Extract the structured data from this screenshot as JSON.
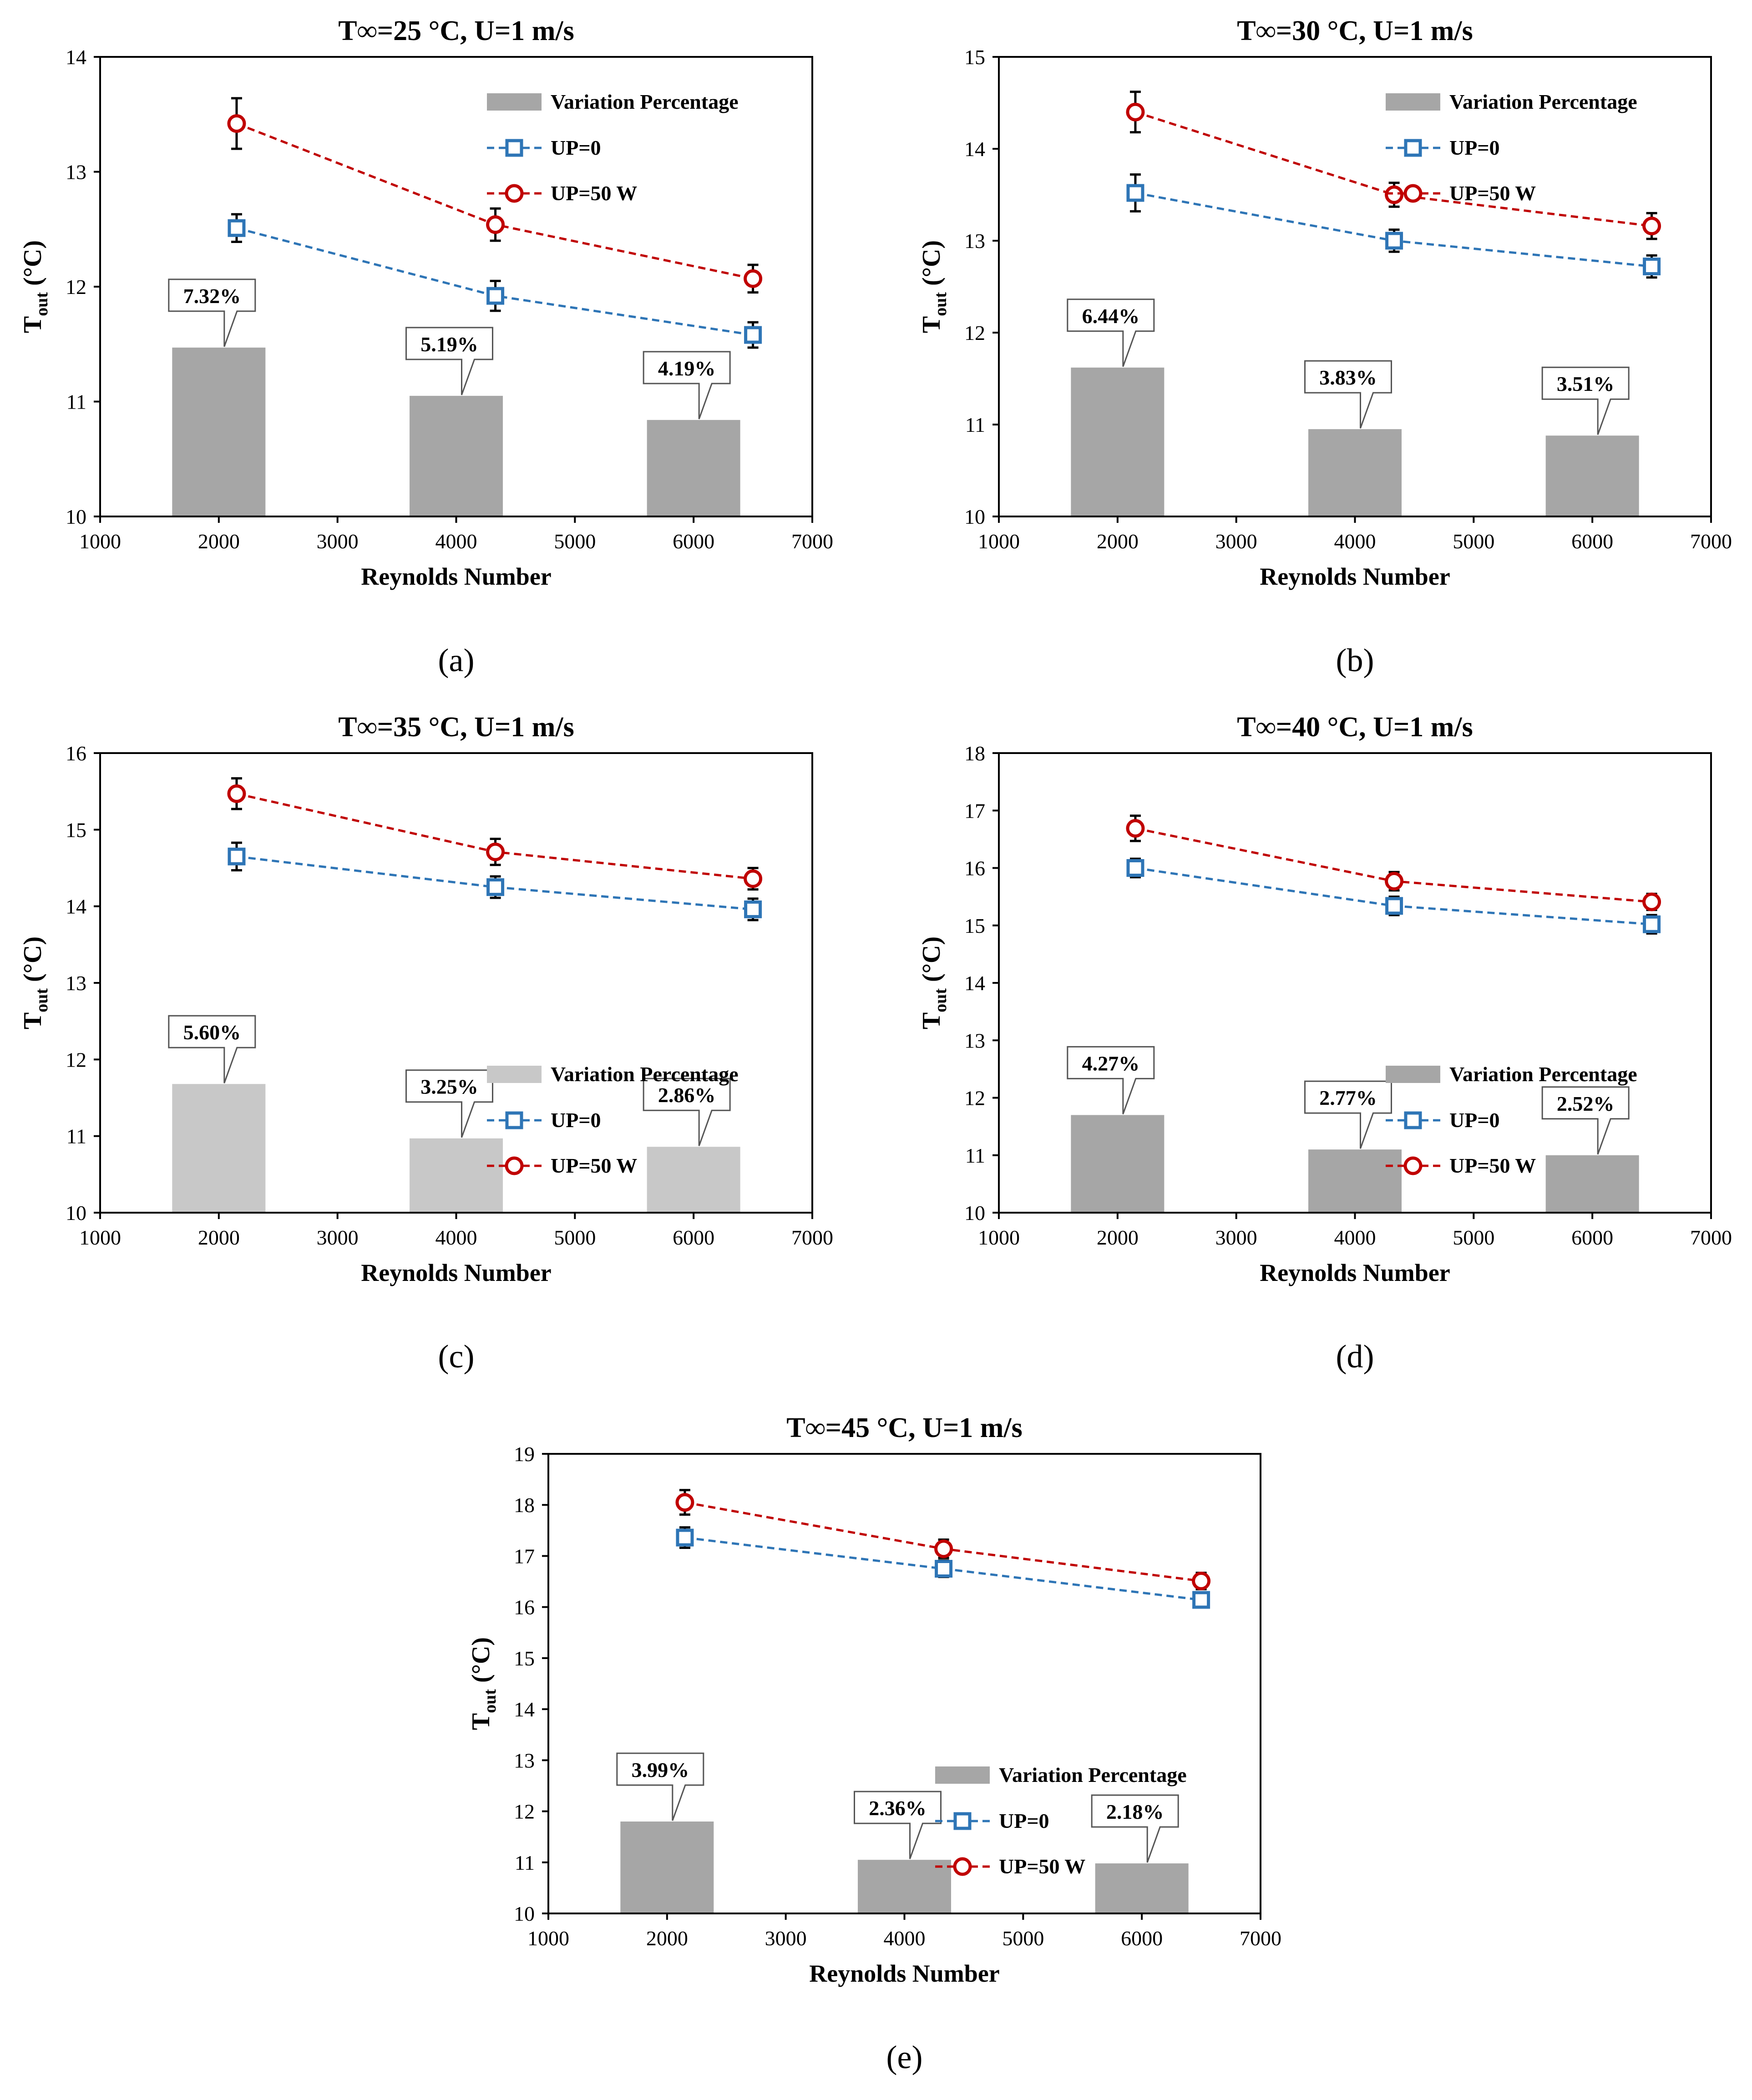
{
  "colors": {
    "bar_dark": "#a6a6a6",
    "bar_light": "#c8c8c8",
    "up0": "#2e75b6",
    "up50": "#c00000",
    "axis": "#000000",
    "callout_fill": "#ffffff"
  },
  "chart_data": [
    {
      "id": "a",
      "sublabel": "(a)",
      "type": "bar+line",
      "title": "T∞=25 °C, U=1 m/s",
      "xlabel": "Reynolds Number",
      "ylabel_main": "T",
      "ylabel_sub": "out",
      "ylabel_unit": " (°C)",
      "xlim": [
        1000,
        7000
      ],
      "ylim": [
        10,
        14
      ],
      "xticks": [
        1000,
        2000,
        3000,
        4000,
        5000,
        6000,
        7000
      ],
      "yticks": [
        10,
        11,
        12,
        13,
        14
      ],
      "legend_position": "top-right",
      "bar_style": "dark",
      "bar_x": [
        2000,
        4000,
        6000
      ],
      "bar_tops": [
        11.47,
        11.05,
        10.84
      ],
      "bar_labels": [
        "7.32%",
        "5.19%",
        "4.19%"
      ],
      "series": [
        {
          "name": "UP=0",
          "marker": "square",
          "x": [
            2150,
            4330,
            6500
          ],
          "y": [
            12.51,
            11.92,
            11.58
          ],
          "err": [
            0.12,
            0.13,
            0.11
          ]
        },
        {
          "name": "UP=50 W",
          "marker": "circle",
          "x": [
            2150,
            4330,
            6500
          ],
          "y": [
            13.42,
            12.54,
            12.07
          ],
          "err": [
            0.22,
            0.14,
            0.12
          ]
        }
      ],
      "bar_legend": "Variation Percentage"
    },
    {
      "id": "b",
      "sublabel": "(b)",
      "type": "bar+line",
      "title": "T∞=30 °C, U=1 m/s",
      "xlabel": "Reynolds Number",
      "ylabel_main": "T",
      "ylabel_sub": "out",
      "ylabel_unit": " (°C)",
      "xlim": [
        1000,
        7000
      ],
      "ylim": [
        10,
        15
      ],
      "xticks": [
        1000,
        2000,
        3000,
        4000,
        5000,
        6000,
        7000
      ],
      "yticks": [
        10,
        11,
        12,
        13,
        14,
        15
      ],
      "legend_position": "top-right",
      "bar_style": "dark",
      "bar_x": [
        2000,
        4000,
        6000
      ],
      "bar_tops": [
        11.62,
        10.95,
        10.88
      ],
      "bar_labels": [
        "6.44%",
        "3.83%",
        "3.51%"
      ],
      "series": [
        {
          "name": "UP=0",
          "marker": "square",
          "x": [
            2150,
            4330,
            6500
          ],
          "y": [
            13.52,
            13.0,
            12.72
          ],
          "err": [
            0.2,
            0.12,
            0.12
          ]
        },
        {
          "name": "UP=50 W",
          "marker": "circle",
          "x": [
            2150,
            4330,
            6500
          ],
          "y": [
            14.4,
            13.5,
            13.16
          ],
          "err": [
            0.22,
            0.13,
            0.14
          ]
        }
      ],
      "bar_legend": "Variation Percentage"
    },
    {
      "id": "c",
      "sublabel": "(c)",
      "type": "bar+line",
      "title": "T∞=35 °C, U=1 m/s",
      "xlabel": "Reynolds Number",
      "ylabel_main": "T",
      "ylabel_sub": "out",
      "ylabel_unit": " (°C)",
      "xlim": [
        1000,
        7000
      ],
      "ylim": [
        10,
        16
      ],
      "xticks": [
        1000,
        2000,
        3000,
        4000,
        5000,
        6000,
        7000
      ],
      "yticks": [
        10,
        11,
        12,
        13,
        14,
        15,
        16
      ],
      "legend_position": "middle-right",
      "bar_style": "light",
      "bar_x": [
        2000,
        4000,
        6000
      ],
      "bar_tops": [
        11.68,
        10.97,
        10.86
      ],
      "bar_labels": [
        "5.60%",
        "3.25%",
        "2.86%"
      ],
      "series": [
        {
          "name": "UP=0",
          "marker": "square",
          "x": [
            2150,
            4330,
            6500
          ],
          "y": [
            14.65,
            14.25,
            13.96
          ],
          "err": [
            0.18,
            0.14,
            0.14
          ]
        },
        {
          "name": "UP=50 W",
          "marker": "circle",
          "x": [
            2150,
            4330,
            6500
          ],
          "y": [
            15.47,
            14.71,
            14.36
          ],
          "err": [
            0.2,
            0.17,
            0.14
          ]
        }
      ],
      "bar_legend": "Variation Percentage"
    },
    {
      "id": "d",
      "sublabel": "(d)",
      "type": "bar+line",
      "title": "T∞=40 °C, U=1 m/s",
      "xlabel": "Reynolds Number",
      "ylabel_main": "T",
      "ylabel_sub": "out",
      "ylabel_unit": " (°C)",
      "xlim": [
        1000,
        7000
      ],
      "ylim": [
        10,
        18
      ],
      "xticks": [
        1000,
        2000,
        3000,
        4000,
        5000,
        6000,
        7000
      ],
      "yticks": [
        10,
        11,
        12,
        13,
        14,
        15,
        16,
        17,
        18
      ],
      "legend_position": "middle-right",
      "bar_style": "dark",
      "bar_x": [
        2000,
        4000,
        6000
      ],
      "bar_tops": [
        11.7,
        11.1,
        11.0
      ],
      "bar_labels": [
        "4.27%",
        "2.77%",
        "2.52%"
      ],
      "series": [
        {
          "name": "UP=0",
          "marker": "square",
          "x": [
            2150,
            4330,
            6500
          ],
          "y": [
            16.0,
            15.34,
            15.02
          ],
          "err": [
            0.16,
            0.16,
            0.16
          ]
        },
        {
          "name": "UP=50 W",
          "marker": "circle",
          "x": [
            2150,
            4330,
            6500
          ],
          "y": [
            16.69,
            15.77,
            15.41
          ],
          "err": [
            0.22,
            0.16,
            0.14
          ]
        }
      ],
      "bar_legend": "Variation Percentage"
    },
    {
      "id": "e",
      "sublabel": "(e)",
      "type": "bar+line",
      "title": "T∞=45 °C, U=1 m/s",
      "xlabel": "Reynolds Number",
      "ylabel_main": "T",
      "ylabel_sub": "out",
      "ylabel_unit": " (°C)",
      "xlim": [
        1000,
        7000
      ],
      "ylim": [
        10,
        19
      ],
      "xticks": [
        1000,
        2000,
        3000,
        4000,
        5000,
        6000,
        7000
      ],
      "yticks": [
        10,
        11,
        12,
        13,
        14,
        15,
        16,
        17,
        18,
        19
      ],
      "legend_position": "middle-right",
      "bar_style": "dark",
      "bar_x": [
        2000,
        4000,
        6000
      ],
      "bar_tops": [
        11.8,
        11.05,
        10.98
      ],
      "bar_labels": [
        "3.99%",
        "2.36%",
        "2.18%"
      ],
      "series": [
        {
          "name": "UP=0",
          "marker": "square",
          "x": [
            2150,
            4330,
            6500
          ],
          "y": [
            17.36,
            16.75,
            16.14
          ],
          "err": [
            0.2,
            0.16,
            0.12
          ]
        },
        {
          "name": "UP=50 W",
          "marker": "circle",
          "x": [
            2150,
            4330,
            6500
          ],
          "y": [
            18.05,
            17.14,
            16.51
          ],
          "err": [
            0.24,
            0.18,
            0.16
          ]
        }
      ],
      "bar_legend": "Variation Percentage"
    }
  ]
}
